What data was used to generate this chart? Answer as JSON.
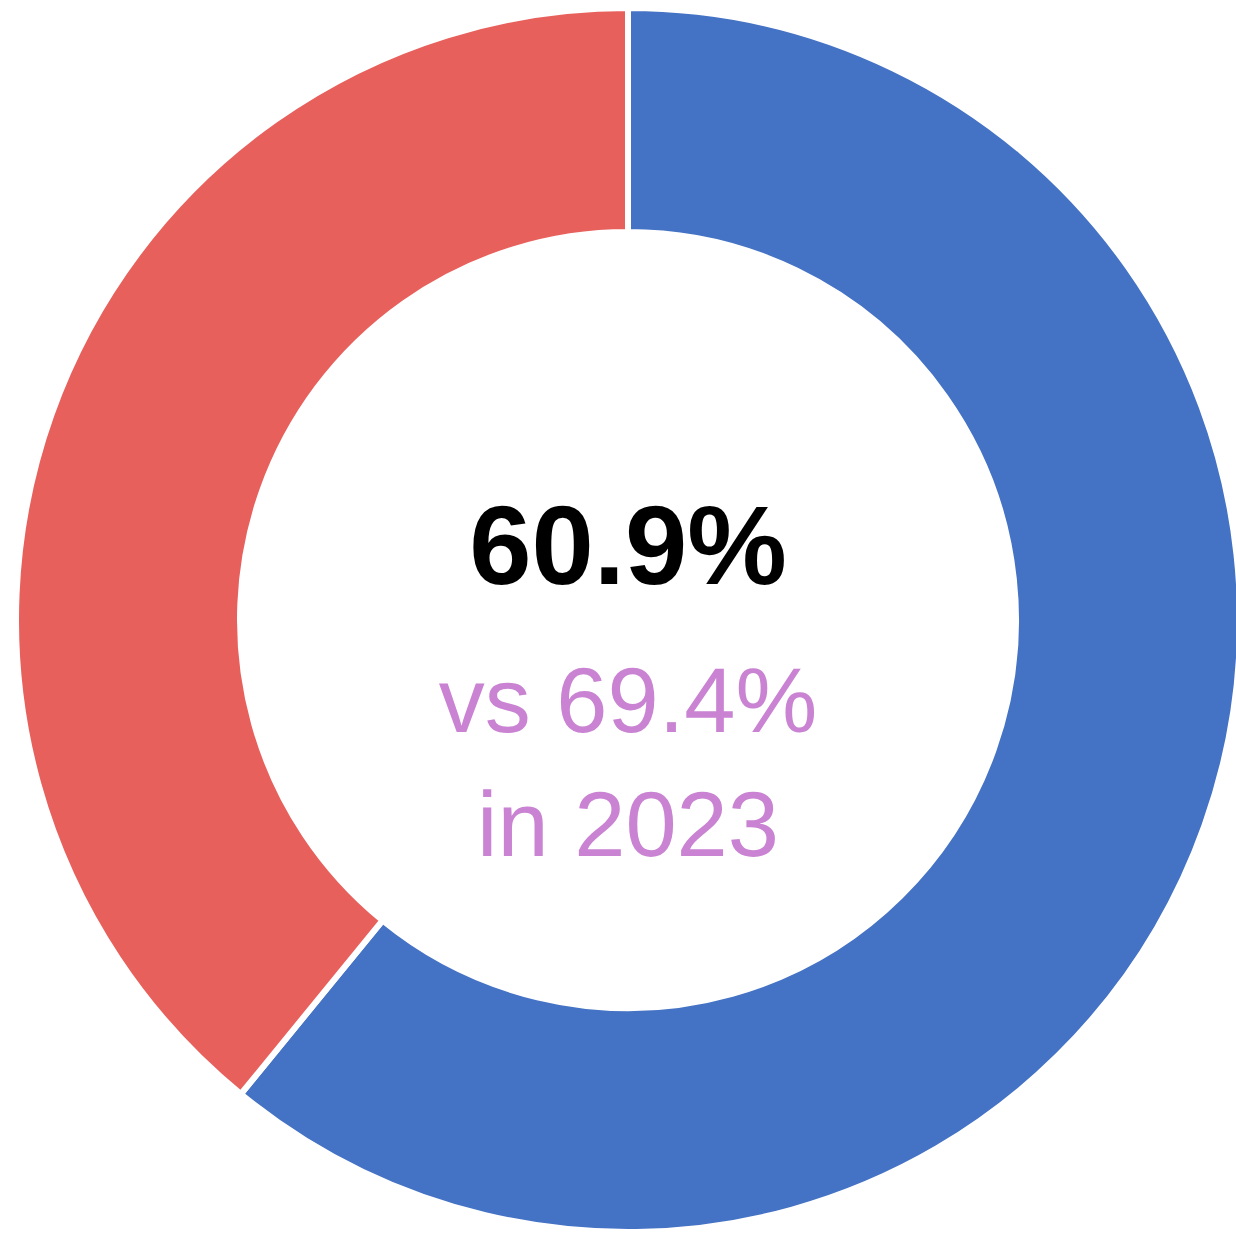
{
  "chart_data": {
    "type": "donut",
    "categories": [
      null,
      null
    ],
    "values": [
      60.9,
      39.1
    ],
    "colors": [
      "#4472c4",
      "#e8605c"
    ],
    "annotations": [
      "60.9%",
      "vs 69.4% in 2023"
    ]
  }
}
